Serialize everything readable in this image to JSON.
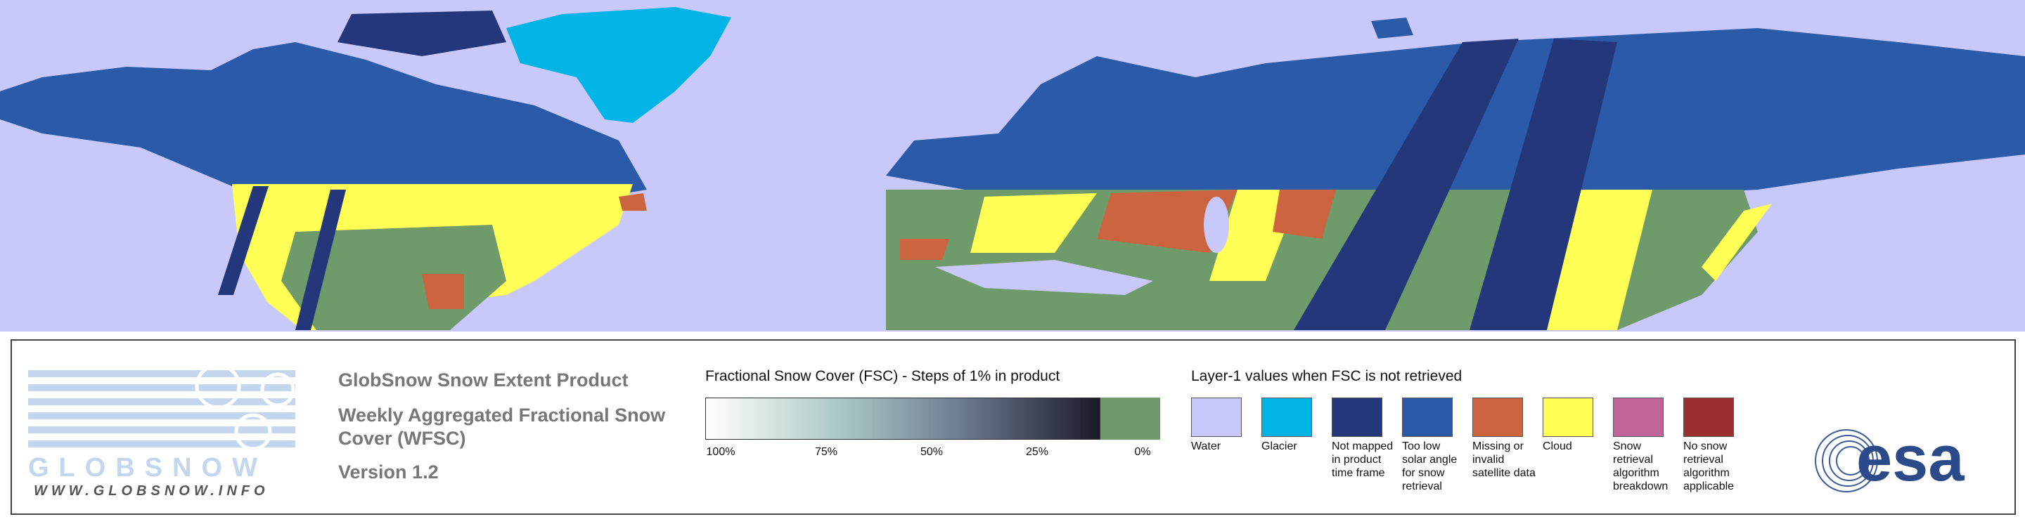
{
  "logo": {
    "name": "GLOBSNOW",
    "url": "WWW.GLOBSNOW.INFO"
  },
  "product": {
    "title": "GlobSnow Snow Extent Product",
    "subtitle": "Weekly Aggregated Fractional Snow Cover (WFSC)",
    "version": "Version 1.2"
  },
  "fsc_legend": {
    "title": "Fractional Snow Cover (FSC) - Steps of 1% in product",
    "ticks": [
      "100%",
      "75%",
      "50%",
      "25%",
      "0%"
    ]
  },
  "layer1_legend": {
    "title": "Layer-1 values when FSC is not retrieved",
    "items": [
      {
        "label": "Water",
        "color": "#c8c8fa"
      },
      {
        "label": "Glacier",
        "color": "#00b4e6"
      },
      {
        "label": "Not mapped in product time frame",
        "color": "#24377a"
      },
      {
        "label": "Too low solar angle for snow retrieval",
        "color": "#2b5ba8"
      },
      {
        "label": "Missing or invalid satellite data",
        "color": "#cd6440"
      },
      {
        "label": "Cloud",
        "color": "#ffff55"
      },
      {
        "label": "Snow retrieval algorithm breakdown",
        "color": "#c0649a"
      },
      {
        "label": "No snow retrieval algorithm applicable",
        "color": "#9b2e2e"
      }
    ]
  },
  "esa_logo": "esa"
}
